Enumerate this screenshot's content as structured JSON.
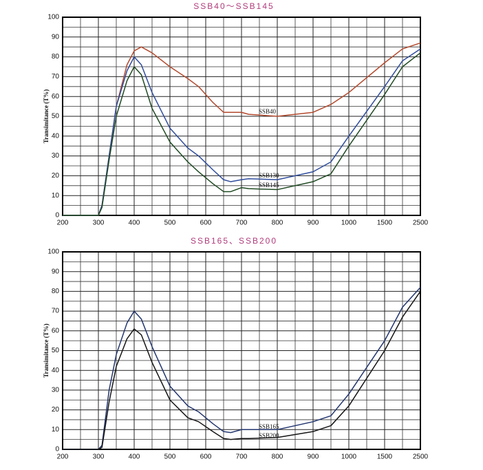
{
  "chart_data": [
    {
      "type": "line",
      "title": "SSB40～SSB145",
      "y_label": "Transimitance (T%)",
      "x": [
        200,
        300,
        310,
        330,
        350,
        380,
        400,
        420,
        450,
        500,
        550,
        580,
        620,
        650,
        670,
        700,
        720,
        800,
        900,
        950,
        1000,
        1500,
        2000,
        2500
      ],
      "series": [
        {
          "name": "SSB40",
          "color": "#b34a2e",
          "values": [
            0,
            0,
            5,
            30,
            55,
            76,
            83,
            85,
            82,
            75,
            69,
            65,
            57,
            52,
            52,
            52,
            51,
            50,
            52,
            56,
            62,
            77,
            84,
            87
          ]
        },
        {
          "name": "SSB130",
          "color": "#2f4c9c",
          "values": [
            0,
            0,
            5,
            30,
            55,
            73,
            80,
            76,
            62,
            44,
            34,
            30,
            23,
            18,
            17,
            18,
            18.5,
            18,
            22,
            27,
            40,
            65,
            78,
            84
          ]
        },
        {
          "name": "SSB145",
          "color": "#1f4a22",
          "values": [
            0,
            0,
            4,
            28,
            50,
            68,
            75,
            71,
            54,
            37,
            27,
            22,
            16,
            12,
            12,
            14,
            13.5,
            13,
            17,
            21,
            35,
            61,
            75,
            82
          ]
        }
      ],
      "xticks": [
        200,
        300,
        400,
        500,
        600,
        700,
        800,
        900,
        1000,
        1500,
        2500
      ],
      "xlim": [
        200,
        2500
      ],
      "yticks": [
        0,
        10,
        20,
        30,
        40,
        50,
        60,
        70,
        80,
        90,
        100
      ],
      "ylim": [
        0,
        100
      ],
      "grid": true
    },
    {
      "type": "line",
      "title": "SSB165、SSB200",
      "y_label": "Transimitance (T%)",
      "x": [
        200,
        300,
        310,
        330,
        350,
        380,
        400,
        420,
        450,
        500,
        550,
        580,
        620,
        650,
        670,
        700,
        720,
        800,
        900,
        950,
        1000,
        1500,
        2000,
        2500
      ],
      "series": [
        {
          "name": "SSB165",
          "color": "#22356f",
          "values": [
            0,
            0,
            2,
            30,
            48,
            64,
            70,
            66,
            52,
            32,
            22,
            19,
            13,
            9,
            8.5,
            10,
            10,
            10,
            14,
            17,
            28,
            55,
            72,
            82
          ]
        },
        {
          "name": "SSB200",
          "color": "#151515",
          "values": [
            0,
            0,
            1,
            24,
            42,
            56,
            61,
            58,
            44,
            25,
            16,
            14,
            9,
            5.5,
            5,
            5.5,
            5.5,
            6,
            9,
            12,
            22,
            50,
            67,
            80
          ]
        }
      ],
      "xticks": [
        200,
        300,
        400,
        500,
        600,
        700,
        800,
        900,
        1000,
        1500,
        2500
      ],
      "xlim": [
        200,
        2500
      ],
      "yticks": [
        0,
        10,
        20,
        30,
        40,
        50,
        60,
        70,
        80,
        90,
        100
      ],
      "ylim": [
        0,
        100
      ],
      "grid": true
    }
  ]
}
